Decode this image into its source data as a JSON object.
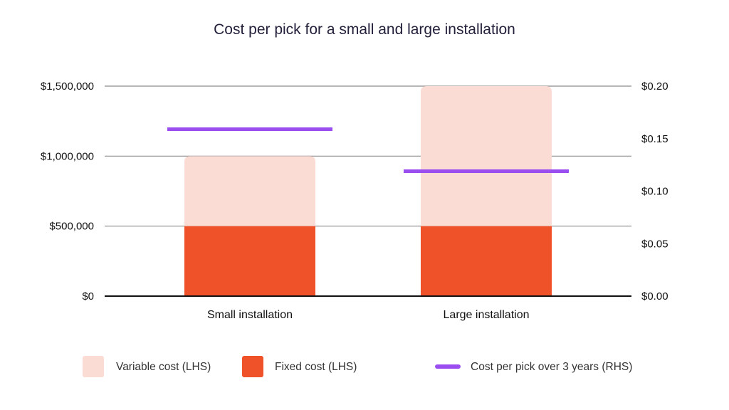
{
  "chart_data": {
    "type": "bar",
    "title": "Cost per pick for a small and large installation",
    "categories": [
      "Small installation",
      "Large installation"
    ],
    "series": [
      {
        "name": "Fixed cost (LHS)",
        "axis": "left",
        "kind": "stacked-bar",
        "color": "#ef5129",
        "values": [
          500000,
          500000
        ]
      },
      {
        "name": "Variable cost (LHS)",
        "axis": "left",
        "kind": "stacked-bar",
        "color": "#fbdcd5",
        "values": [
          500000,
          1000000
        ]
      },
      {
        "name": "Cost per pick over 3 years (RHS)",
        "axis": "right",
        "kind": "marker-line",
        "color": "#9b4ef0",
        "values": [
          0.159,
          0.119
        ]
      }
    ],
    "left_axis": {
      "ylim": [
        0,
        1500000
      ],
      "ticks": [
        0,
        500000,
        1000000,
        1500000
      ],
      "tick_labels": [
        "$0",
        "$500,000",
        "$1,000,000",
        "$1,500,000"
      ]
    },
    "right_axis": {
      "ylim": [
        0,
        0.2
      ],
      "ticks": [
        0,
        0.05,
        0.1,
        0.15,
        0.2
      ],
      "tick_labels": [
        "$0.00",
        "$0.05",
        "$0.10",
        "$0.15",
        "$0.20"
      ]
    },
    "legend": {
      "placement": "bottom",
      "items": [
        {
          "label": "Variable cost (LHS)",
          "color": "#fbdcd5",
          "shape": "square"
        },
        {
          "label": "Fixed cost (LHS)",
          "color": "#ef5129",
          "shape": "square"
        },
        {
          "label": "Cost per pick over 3 years (RHS)",
          "color": "#9b4ef0",
          "shape": "line"
        }
      ]
    },
    "grid": true,
    "gridline_color": "#8a8a8a",
    "axis_color": "#111111"
  }
}
